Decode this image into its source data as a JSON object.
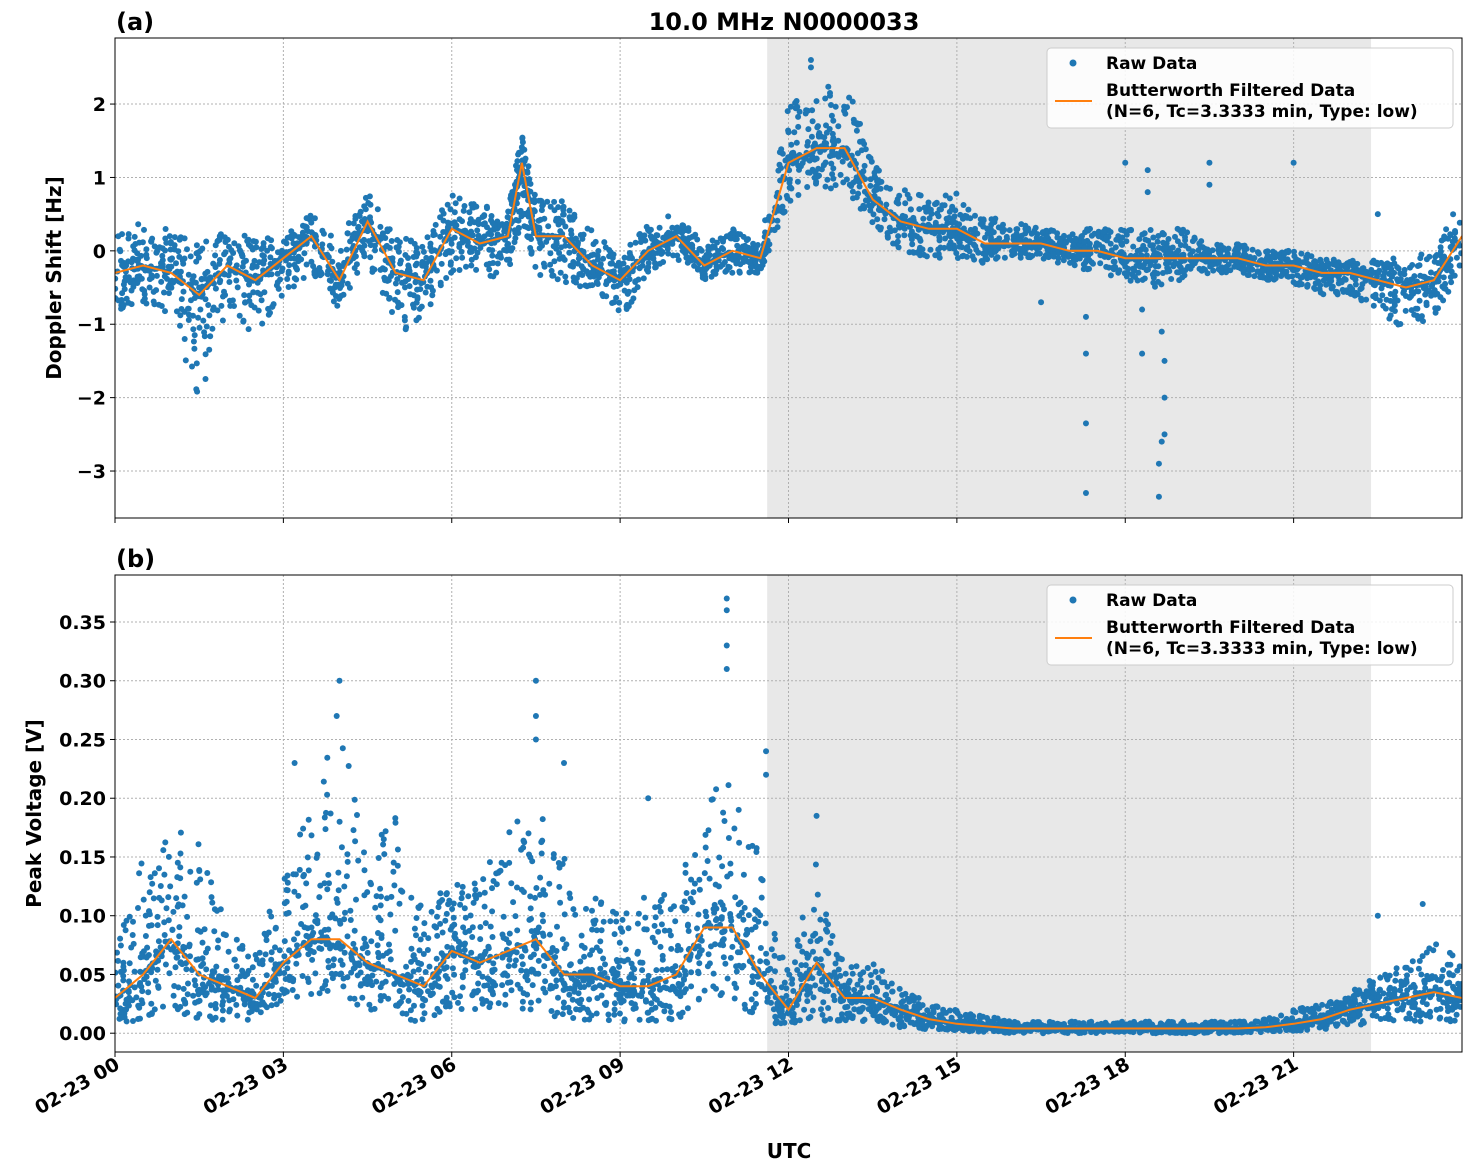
{
  "figure_title": "10.0 MHz N0000033",
  "colors": {
    "raw": "#1f77b4",
    "filtered": "#ff7f0e",
    "shade": "#e8e8e8",
    "grid": "#b0b0b0"
  },
  "chart_data": [
    {
      "type": "scatter+line",
      "panel_label": "(a)",
      "ylabel": "Doppler Shift [Hz]",
      "xlabel": "",
      "xlim_hours_utc": [
        0,
        24
      ],
      "ylim": [
        -3.64,
        2.9
      ],
      "yticks": [
        -3,
        -2,
        -1,
        0,
        1,
        2
      ],
      "ytick_labels": [
        "−3",
        "−2",
        "−1",
        "0",
        "1",
        "2"
      ],
      "grid": true,
      "shaded_interval_hours_utc": [
        11.62,
        22.38
      ],
      "legend": {
        "placement": "top-right",
        "entries": [
          "Raw Data",
          "Butterworth Filtered Data",
          "(N=6, Tc=3.3333 min, Type: low)"
        ]
      },
      "x": [
        0,
        0.5,
        1,
        1.5,
        2,
        2.5,
        3,
        3.5,
        4,
        4.5,
        5,
        5.5,
        6,
        6.5,
        7,
        7.25,
        7.5,
        8,
        8.5,
        9,
        9.5,
        10,
        10.5,
        11,
        11.5,
        12,
        12.5,
        13,
        13.5,
        14,
        14.5,
        15,
        15.5,
        16,
        16.5,
        17,
        17.5,
        18,
        18.5,
        19,
        19.5,
        20,
        20.5,
        21,
        21.5,
        22,
        22.5,
        23,
        23.5,
        24
      ],
      "series": [
        {
          "name": "Butterworth Filtered Data",
          "values": [
            -0.3,
            -0.2,
            -0.3,
            -0.6,
            -0.2,
            -0.4,
            -0.1,
            0.2,
            -0.4,
            0.4,
            -0.3,
            -0.4,
            0.3,
            0.1,
            0.2,
            1.2,
            0.2,
            0.2,
            -0.2,
            -0.4,
            0.0,
            0.2,
            -0.2,
            0.0,
            -0.1,
            1.2,
            1.4,
            1.4,
            0.7,
            0.4,
            0.3,
            0.3,
            0.1,
            0.1,
            0.1,
            0.0,
            0.0,
            -0.1,
            -0.1,
            -0.1,
            -0.1,
            -0.1,
            -0.2,
            -0.2,
            -0.3,
            -0.3,
            -0.4,
            -0.5,
            -0.4,
            0.2
          ]
        },
        {
          "name": "Raw Data",
          "min": [
            -0.9,
            -0.7,
            -0.9,
            -2.1,
            -0.8,
            -1.2,
            -0.6,
            -0.3,
            -0.8,
            -0.1,
            -1.2,
            -0.9,
            -0.3,
            -0.4,
            -0.3,
            0.4,
            -0.3,
            -0.5,
            -0.5,
            -1.0,
            -0.3,
            -0.1,
            -0.4,
            -0.3,
            -0.3,
            0.6,
            0.9,
            0.8,
            0.3,
            0.0,
            -0.1,
            -0.1,
            -0.2,
            -0.1,
            -0.1,
            -0.2,
            -0.3,
            -0.4,
            -0.5,
            -0.4,
            -0.3,
            -0.3,
            -0.4,
            -0.5,
            -0.6,
            -0.6,
            -0.8,
            -1.1,
            -0.9,
            -0.3
          ],
          "max": [
            0.2,
            0.4,
            0.3,
            0.1,
            0.3,
            0.2,
            0.2,
            0.5,
            0.2,
            0.8,
            0.2,
            0.1,
            0.8,
            0.6,
            0.6,
            1.6,
            0.7,
            0.7,
            0.3,
            -0.1,
            0.4,
            0.5,
            0.1,
            0.3,
            0.1,
            2.0,
            2.2,
            2.4,
            1.2,
            0.9,
            0.7,
            0.8,
            0.5,
            0.4,
            0.3,
            0.3,
            0.3,
            0.3,
            0.3,
            0.3,
            0.1,
            0.1,
            0.0,
            0.0,
            -0.1,
            -0.1,
            -0.1,
            -0.1,
            0.0,
            0.8
          ],
          "outliers": [
            [
              17.3,
              -3.3
            ],
            [
              17.3,
              -2.35
            ],
            [
              17.3,
              -1.4
            ],
            [
              17.3,
              -0.9
            ],
            [
              18.6,
              -3.35
            ],
            [
              18.6,
              -2.9
            ],
            [
              18.65,
              -2.6
            ],
            [
              18.7,
              -2.5
            ],
            [
              18.7,
              -2.0
            ],
            [
              18.7,
              -1.5
            ],
            [
              18.65,
              -1.1
            ],
            [
              18.3,
              -1.4
            ],
            [
              18.3,
              -0.8
            ],
            [
              18.0,
              1.2
            ],
            [
              18.4,
              1.1
            ],
            [
              18.4,
              0.8
            ],
            [
              19.5,
              1.2
            ],
            [
              19.5,
              0.9
            ],
            [
              21.0,
              1.2
            ],
            [
              16.5,
              -0.7
            ],
            [
              12.4,
              2.6
            ],
            [
              12.4,
              2.5
            ],
            [
              22.5,
              0.5
            ]
          ]
        }
      ]
    },
    {
      "type": "scatter+line",
      "panel_label": "(b)",
      "ylabel": "Peak Voltage [V]",
      "xlabel": "UTC",
      "xlim_hours_utc": [
        0,
        24
      ],
      "xticks_hours_utc": [
        0,
        3,
        6,
        9,
        12,
        15,
        18,
        21
      ],
      "xtick_labels": [
        "02-23 00",
        "02-23 03",
        "02-23 06",
        "02-23 09",
        "02-23 12",
        "02-23 15",
        "02-23 18",
        "02-23 21"
      ],
      "ylim": [
        -0.016,
        0.39
      ],
      "yticks": [
        0,
        0.05,
        0.1,
        0.15,
        0.2,
        0.25,
        0.3,
        0.35
      ],
      "ytick_labels": [
        "0.00",
        "0.05",
        "0.10",
        "0.15",
        "0.20",
        "0.25",
        "0.30",
        "0.35"
      ],
      "grid": true,
      "shaded_interval_hours_utc": [
        11.62,
        22.38
      ],
      "legend": {
        "placement": "top-right",
        "entries": [
          "Raw Data",
          "Butterworth Filtered Data",
          "(N=6, Tc=3.3333 min, Type: low)"
        ]
      },
      "x": [
        0,
        0.5,
        1,
        1.5,
        2,
        2.5,
        3,
        3.5,
        4,
        4.5,
        5,
        5.5,
        6,
        6.5,
        7,
        7.5,
        8,
        8.5,
        9,
        9.5,
        10,
        10.5,
        11,
        11.5,
        12,
        12.5,
        13,
        13.5,
        14,
        14.5,
        15,
        15.5,
        16,
        16.5,
        17,
        17.5,
        18,
        18.5,
        19,
        19.5,
        20,
        20.5,
        21,
        21.5,
        22,
        22.5,
        23,
        23.5,
        24
      ],
      "series": [
        {
          "name": "Butterworth Filtered Data",
          "values": [
            0.03,
            0.05,
            0.08,
            0.05,
            0.04,
            0.03,
            0.06,
            0.08,
            0.08,
            0.06,
            0.05,
            0.04,
            0.07,
            0.06,
            0.07,
            0.08,
            0.05,
            0.05,
            0.04,
            0.04,
            0.05,
            0.09,
            0.09,
            0.05,
            0.02,
            0.06,
            0.03,
            0.03,
            0.02,
            0.012,
            0.008,
            0.006,
            0.004,
            0.004,
            0.004,
            0.004,
            0.004,
            0.004,
            0.004,
            0.004,
            0.004,
            0.005,
            0.008,
            0.012,
            0.02,
            0.025,
            0.03,
            0.035,
            0.03
          ]
        },
        {
          "name": "Raw Data",
          "min": [
            0.01,
            0.01,
            0.02,
            0.01,
            0.01,
            0.01,
            0.02,
            0.03,
            0.03,
            0.02,
            0.01,
            0.01,
            0.02,
            0.02,
            0.02,
            0.02,
            0.01,
            0.01,
            0.01,
            0.01,
            0.01,
            0.03,
            0.03,
            0.01,
            0.005,
            0.01,
            0.01,
            0.01,
            0.005,
            0.003,
            0.002,
            0.001,
            0,
            0,
            0,
            0,
            0,
            0,
            0,
            0,
            0,
            0.001,
            0.002,
            0.003,
            0.005,
            0.01,
            0.01,
            0.01,
            0.01
          ],
          "max": [
            0.07,
            0.15,
            0.18,
            0.17,
            0.09,
            0.07,
            0.14,
            0.19,
            0.28,
            0.16,
            0.19,
            0.1,
            0.14,
            0.13,
            0.18,
            0.2,
            0.15,
            0.12,
            0.1,
            0.12,
            0.13,
            0.2,
            0.22,
            0.15,
            0.05,
            0.15,
            0.06,
            0.06,
            0.04,
            0.025,
            0.02,
            0.015,
            0.01,
            0.01,
            0.01,
            0.01,
            0.01,
            0.01,
            0.01,
            0.01,
            0.01,
            0.012,
            0.02,
            0.025,
            0.035,
            0.05,
            0.06,
            0.08,
            0.07
          ],
          "outliers": [
            [
              10.9,
              0.37
            ],
            [
              10.9,
              0.36
            ],
            [
              10.9,
              0.33
            ],
            [
              10.9,
              0.31
            ],
            [
              4.0,
              0.3
            ],
            [
              3.95,
              0.27
            ],
            [
              7.5,
              0.3
            ],
            [
              7.5,
              0.27
            ],
            [
              7.5,
              0.25
            ],
            [
              8.0,
              0.23
            ],
            [
              9.5,
              0.2
            ],
            [
              3.2,
              0.23
            ],
            [
              11.6,
              0.24
            ],
            [
              11.6,
              0.22
            ],
            [
              12.5,
              0.185
            ],
            [
              22.5,
              0.1
            ],
            [
              23.3,
              0.11
            ]
          ]
        }
      ]
    }
  ]
}
